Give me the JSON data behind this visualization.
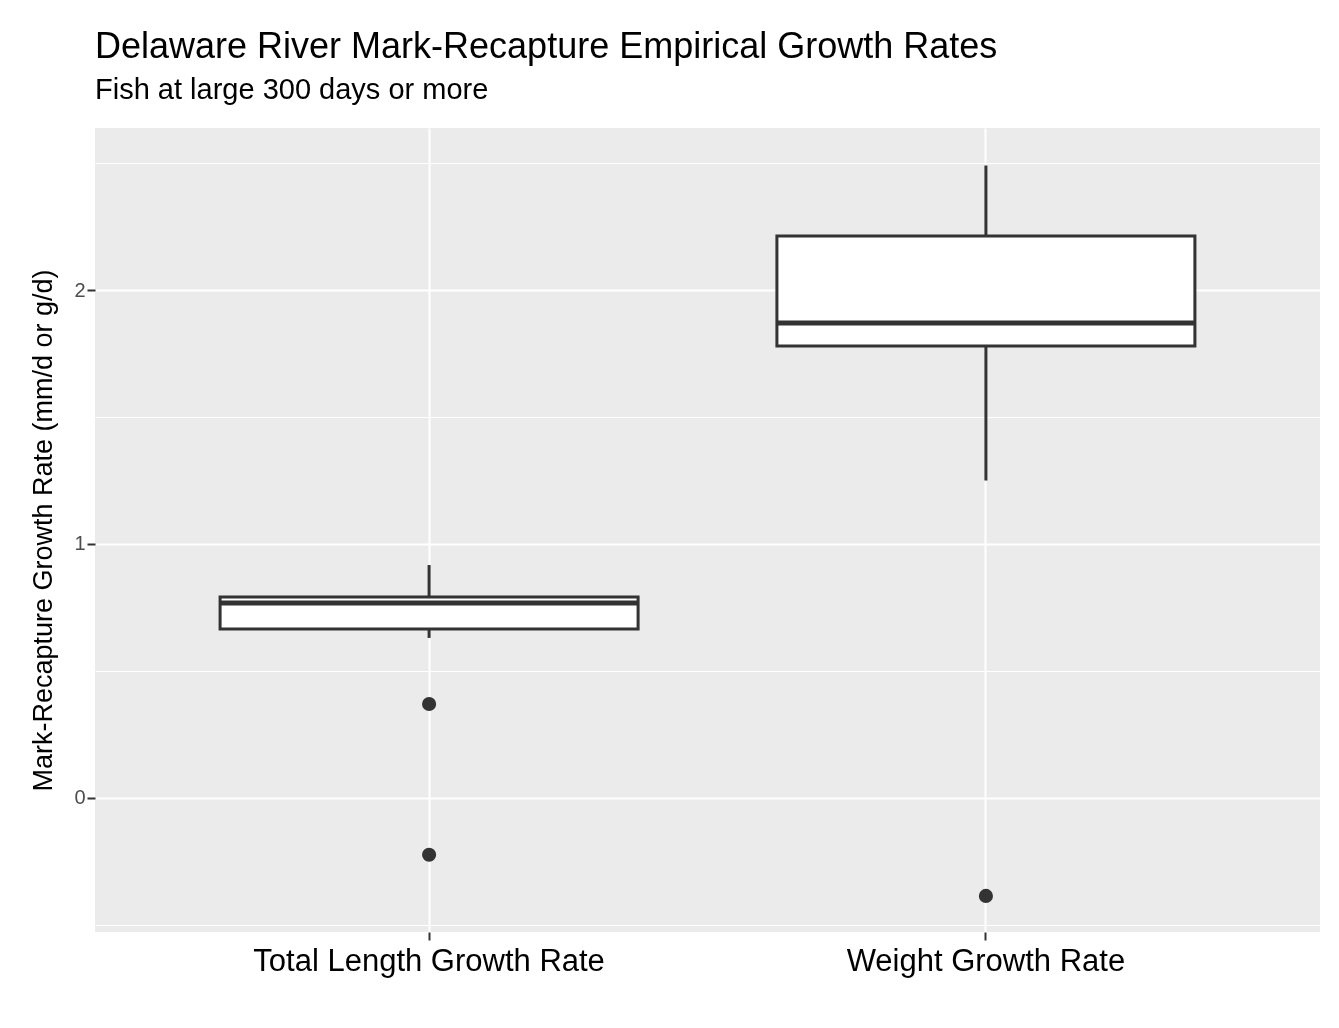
{
  "chart_data": {
    "type": "box",
    "title": "Delaware River Mark-Recapture Empirical Growth Rates",
    "subtitle": "Fish at large 300 days or more",
    "ylabel": "Mark-Recapture Growth Rate (mm/d or g/d)",
    "categories": [
      "Total Length Growth Rate",
      "Weight Growth Rate"
    ],
    "boxes": [
      {
        "low": 0.63,
        "q1": 0.665,
        "median": 0.768,
        "q3": 0.791,
        "high": 0.917,
        "outliers": [
          0.37,
          -0.224
        ]
      },
      {
        "low": 1.25,
        "q1": 1.78,
        "median": 1.87,
        "q3": 2.213,
        "high": 2.49,
        "outliers": [
          -0.386
        ]
      }
    ],
    "ylim": [
      -0.528,
      2.638
    ],
    "yticks": [
      {
        "value": -0.5,
        "label": null
      },
      0,
      {
        "value": 0.5,
        "label": null
      },
      1,
      {
        "value": 1.5,
        "label": null
      },
      2,
      {
        "value": 2.5,
        "label": null
      }
    ],
    "grid": true
  }
}
